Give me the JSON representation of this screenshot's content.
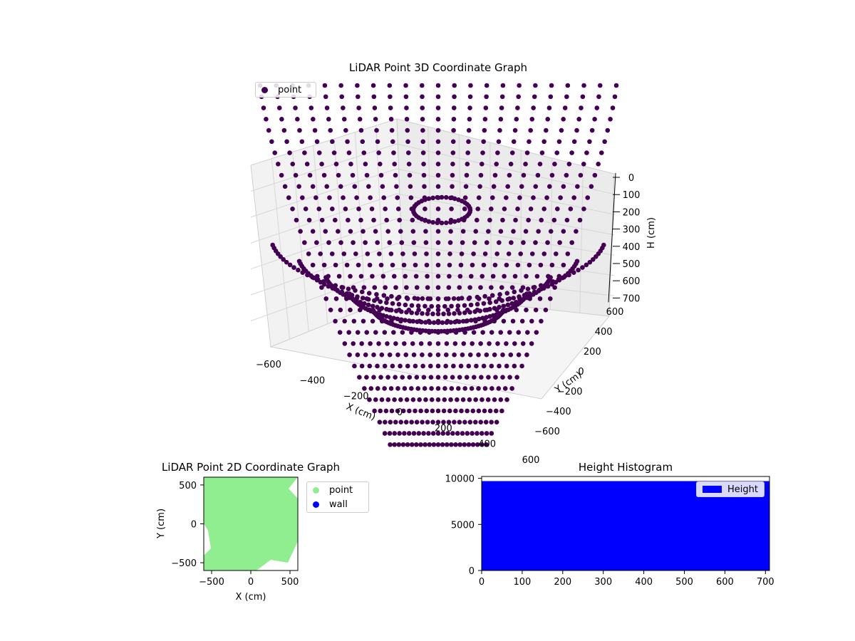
{
  "chart_data": [
    {
      "type": "scatter",
      "title": "LiDAR Point 3D Coordinate Graph",
      "xlabel": "X (cm)",
      "ylabel": "Y (cm)",
      "zlabel": "H (cm)",
      "x_ticks": [
        "−600",
        "−400",
        "−200",
        "0",
        "200",
        "400",
        "600"
      ],
      "y_ticks": [
        "−600",
        "−400",
        "−200",
        "0",
        "200",
        "400",
        "600"
      ],
      "z_ticks": [
        "0",
        "100",
        "200",
        "300",
        "400",
        "500",
        "600",
        "700"
      ],
      "xlim": [
        -600,
        600
      ],
      "ylim": [
        -600,
        600
      ],
      "zlim": [
        700,
        0
      ],
      "z_inverted": true,
      "grid": true,
      "legend": {
        "position": "top-left",
        "entries": [
          {
            "label": "point",
            "color": "#440154"
          }
        ]
      },
      "series": [
        {
          "name": "point",
          "color": "#440154",
          "description_rings": [
            {
              "radius": 560,
              "h_range": [
                0,
                700
              ]
            },
            {
              "radius": 470,
              "h_range": [
                100,
                700
              ]
            },
            {
              "radius": 380,
              "h_range": [
                200,
                700
              ]
            },
            {
              "radius": 300,
              "h_range": [
                300,
                700
              ]
            },
            {
              "radius": 220,
              "h_range": [
                380,
                700
              ]
            }
          ]
        }
      ]
    },
    {
      "type": "scatter",
      "title": "LiDAR Point 2D Coordinate Graph",
      "xlabel": "X (cm)",
      "ylabel": "Y (cm)",
      "xlim": [
        -600,
        600
      ],
      "ylim": [
        -600,
        600
      ],
      "x_ticks": [
        "−500",
        "0",
        "500"
      ],
      "y_ticks": [
        "−500",
        "0",
        "500"
      ],
      "legend": {
        "position": "outside-right",
        "entries": [
          {
            "label": "point",
            "color": "#90ee90"
          },
          {
            "label": "wall",
            "color": "#0000ff"
          }
        ]
      },
      "series": [
        {
          "name": "point",
          "color": "#90ee90"
        },
        {
          "name": "wall",
          "color": "#0000ff"
        }
      ]
    },
    {
      "type": "bar",
      "title": "Height Histogram",
      "xlim": [
        0,
        710
      ],
      "ylim": [
        0,
        10200
      ],
      "x_ticks": [
        "0",
        "100",
        "200",
        "300",
        "400",
        "500",
        "600",
        "700"
      ],
      "y_ticks": [
        "0",
        "5000",
        "10000"
      ],
      "legend": {
        "position": "top-right",
        "entries": [
          {
            "label": "Height",
            "color": "#0000ff"
          }
        ]
      },
      "series": [
        {
          "name": "Height",
          "color": "#0000ff",
          "bin_range": [
            0,
            710
          ],
          "count": 9700
        }
      ]
    }
  ]
}
